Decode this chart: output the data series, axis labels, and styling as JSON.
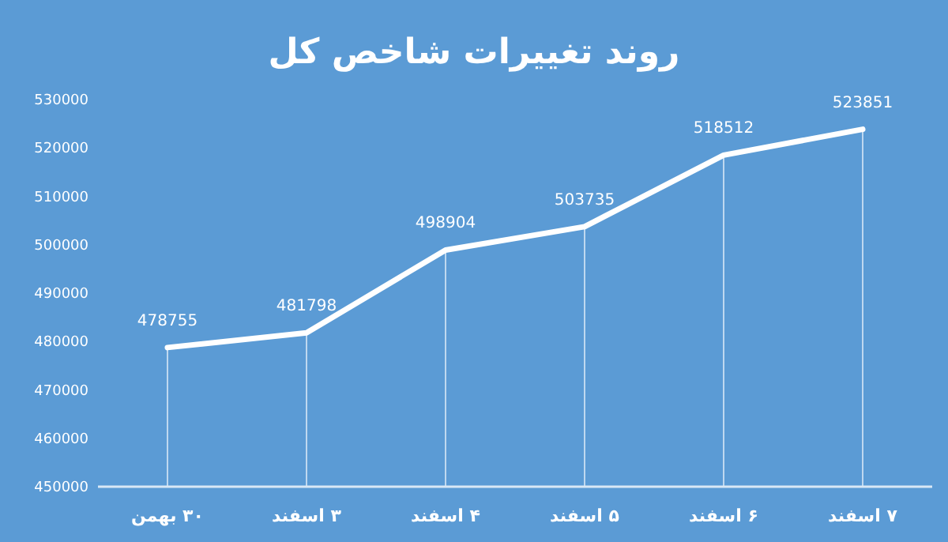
{
  "chart_data": {
    "type": "line",
    "title": "روند تغییرات شاخص کل",
    "categories": [
      "۳۰ بهمن",
      "۳ اسفند",
      "۴ اسفند",
      "۵ اسفند",
      "۶ اسفند",
      "۷ اسفند"
    ],
    "series": [
      {
        "color": "#ffffff",
        "values": [
          478755,
          481798,
          498904,
          503735,
          518512,
          523851
        ]
      }
    ],
    "ylim": [
      450000,
      530000
    ],
    "yticks": [
      450000,
      460000,
      470000,
      480000,
      490000,
      500000,
      510000,
      520000,
      530000
    ],
    "data_labels": true,
    "grid": "x",
    "marker": "none",
    "line_style": "solid"
  }
}
